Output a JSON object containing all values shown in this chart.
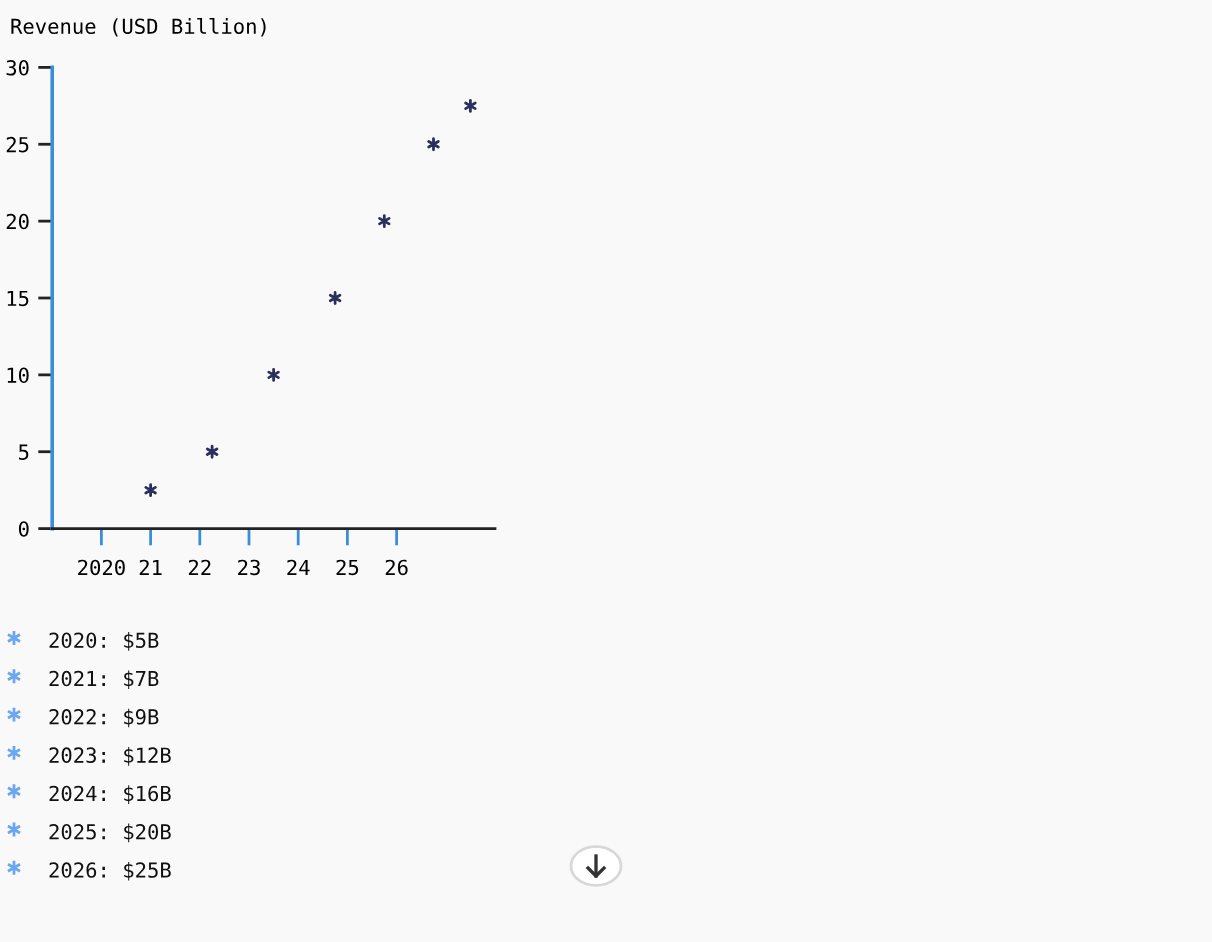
{
  "chart_data": {
    "type": "scatter",
    "ylabel": "Revenue (USD Billion)",
    "x": [
      2021,
      2022.25,
      2023.5,
      2024.75,
      2025.75,
      2026.75,
      2027.5
    ],
    "values": [
      2.5,
      5,
      10,
      15,
      20,
      25,
      27.5
    ],
    "color": "#2b2f5e",
    "marker": "cross",
    "xlim": [
      2019,
      2028
    ],
    "ylim": [
      0,
      30
    ],
    "xticks": [
      2020,
      {
        "value": 2021,
        "label": "21"
      },
      {
        "value": 2022,
        "label": "22"
      },
      {
        "value": 2023,
        "label": "23"
      },
      {
        "value": 2024,
        "label": "24"
      },
      {
        "value": 2025,
        "label": "25"
      },
      {
        "value": 2026,
        "label": "26"
      }
    ],
    "yticks": [
      0,
      5,
      10,
      15,
      20,
      25,
      30
    ],
    "annotations": [
      "2020: $5B",
      "2021: $7B",
      "2022: $9B",
      "2023: $12B",
      "2024: $16B",
      "2025: $20B",
      "2026: $25B"
    ]
  }
}
